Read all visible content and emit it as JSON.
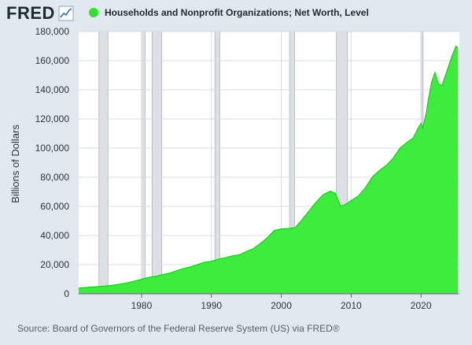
{
  "header": {
    "logo_text": "FRED",
    "logo_icon": "fred-chart-icon"
  },
  "legend": {
    "label": "Households and Nonprofit Organizations; Net Worth, Level",
    "color": "#32e02e"
  },
  "source": "Source: Board of Governors of the Federal Reserve System (US) via FRED®",
  "colors": {
    "series_fill": "#3ded3d",
    "series_line": "#22b322",
    "recession": "#dcdfe5",
    "recession_border": "#aeb4bb",
    "grid": "#d6dce3",
    "background": "#e1e9f0"
  },
  "chart_data": {
    "type": "area",
    "title": "",
    "ylabel": "Billions of Dollars",
    "xlabel": "",
    "xlim": [
      1971,
      2025.5
    ],
    "ylim": [
      0,
      180000
    ],
    "x_ticks": [
      "1980",
      "1990",
      "2000",
      "2010",
      "2020"
    ],
    "x_tick_values": [
      1980,
      1990,
      2000,
      2010,
      2020
    ],
    "y_ticks": [
      "0",
      "20,000",
      "40,000",
      "60,000",
      "80,000",
      "100,000",
      "120,000",
      "140,000",
      "160,000",
      "180,000"
    ],
    "y_tick_values": [
      0,
      20000,
      40000,
      60000,
      80000,
      100000,
      120000,
      140000,
      160000,
      180000
    ],
    "grid": true,
    "legend_position": "top",
    "recessions": [
      [
        1973.9,
        1975.2
      ],
      [
        1980.0,
        1980.5
      ],
      [
        1981.5,
        1982.9
      ],
      [
        1990.5,
        1991.2
      ],
      [
        2001.2,
        2001.9
      ],
      [
        2007.9,
        2009.5
      ],
      [
        2020.0,
        2020.3
      ]
    ],
    "series": [
      {
        "name": "Households and Nonprofit Organizations; Net Worth, Level",
        "x": [
          1971,
          1972,
          1973,
          1974,
          1975,
          1976,
          1977,
          1978,
          1979,
          1980,
          1981,
          1982,
          1983,
          1984,
          1985,
          1986,
          1987,
          1988,
          1989,
          1990,
          1991,
          1992,
          1993,
          1994,
          1995,
          1996,
          1997,
          1998,
          1999,
          2000,
          2001,
          2002,
          2003,
          2004,
          2005,
          2006,
          2007,
          2007.75,
          2008.5,
          2009.25,
          2010,
          2011,
          2012,
          2013,
          2014,
          2015,
          2016,
          2017,
          2018,
          2018.9,
          2019.5,
          2020,
          2020.25,
          2020.75,
          2021,
          2021.5,
          2022,
          2022.5,
          2023,
          2023.5,
          2024,
          2024.5,
          2025,
          2025.3
        ],
        "values": [
          3900,
          4300,
          4700,
          5000,
          5400,
          6000,
          6700,
          7600,
          8700,
          10000,
          11200,
          12000,
          13200,
          14200,
          15800,
          17400,
          18500,
          20000,
          21700,
          22300,
          23800,
          24800,
          26000,
          26800,
          29000,
          31000,
          34500,
          38500,
          43500,
          44500,
          44800,
          45500,
          51000,
          57000,
          63000,
          68000,
          70500,
          69000,
          60000,
          61500,
          64000,
          67000,
          72500,
          80000,
          84500,
          88000,
          93000,
          100000,
          104000,
          107000,
          113000,
          117000,
          114000,
          124000,
          132000,
          145000,
          152000,
          144000,
          143000,
          150000,
          157000,
          164000,
          170000,
          169000
        ]
      }
    ]
  }
}
